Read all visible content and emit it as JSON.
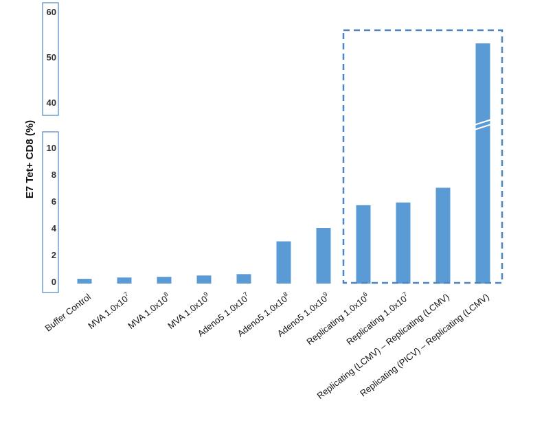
{
  "chart_data": {
    "type": "bar",
    "ylabel": "E7 Tet+ CD8 (%)",
    "categories": [
      {
        "base": "Buffer Control",
        "exp": ""
      },
      {
        "base": "MVA 1.0x10",
        "exp": "7"
      },
      {
        "base": "MVA 1.0x10",
        "exp": "8"
      },
      {
        "base": "MVA 1.0x10",
        "exp": "9"
      },
      {
        "base": "Adeno5 1.0x10",
        "exp": "7"
      },
      {
        "base": "Adeno5 1.0x10",
        "exp": "8"
      },
      {
        "base": "Adeno5 1.0x10",
        "exp": "9"
      },
      {
        "base": "Replicating 1.0x10",
        "exp": "6"
      },
      {
        "base": "Replicating 1.0x10",
        "exp": "7"
      },
      {
        "base": "Replicating (LCMV) – Replicating (LCMV)",
        "exp": ""
      },
      {
        "base": "Replicating (PICV) – Replicating (LCMV)",
        "exp": ""
      }
    ],
    "values": [
      0.2,
      0.3,
      0.35,
      0.45,
      0.55,
      3.0,
      4.0,
      5.7,
      5.9,
      7.0,
      53.0
    ],
    "y_segments": [
      {
        "range": [
          0,
          10
        ],
        "ticks": [
          "0",
          "2",
          "4",
          "6",
          "8",
          "10"
        ]
      },
      {
        "range": [
          40,
          60
        ],
        "ticks": [
          "40",
          "50",
          "60"
        ]
      }
    ],
    "axis_break": true,
    "highlight_box_categories": [
      7,
      10
    ],
    "bar_color": "#5b9bd5",
    "frame_color": "#4a86c0"
  }
}
